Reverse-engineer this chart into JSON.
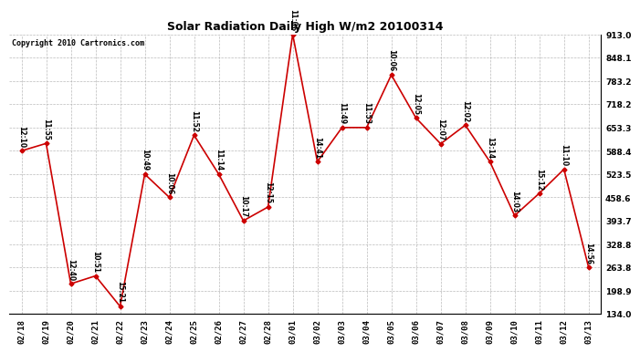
{
  "title": "Solar Radiation Daily High W/m2 20100314",
  "copyright": "Copyright 2010 Cartronics.com",
  "dates": [
    "02/18",
    "02/19",
    "02/20",
    "02/21",
    "02/22",
    "02/23",
    "02/24",
    "02/25",
    "02/26",
    "02/27",
    "02/28",
    "03/01",
    "03/02",
    "03/03",
    "03/04",
    "03/05",
    "03/06",
    "03/07",
    "03/08",
    "03/09",
    "03/10",
    "03/11",
    "03/12",
    "03/13"
  ],
  "values": [
    588.4,
    609.0,
    218.0,
    240.0,
    155.0,
    523.5,
    458.6,
    632.0,
    523.5,
    393.7,
    432.0,
    913.0,
    558.0,
    653.3,
    653.3,
    800.0,
    680.0,
    608.0,
    660.0,
    558.0,
    408.0,
    470.0,
    537.0,
    263.8
  ],
  "time_labels": [
    "12:10",
    "11:55",
    "12:40",
    "10:51",
    "15:21",
    "10:49",
    "10:06",
    "11:52",
    "11:14",
    "10:17",
    "12:15",
    "11:06",
    "14:41",
    "11:49",
    "11:53",
    "10:06",
    "12:05",
    "12:07",
    "12:02",
    "13:14",
    "14:03",
    "15:12",
    "11:10",
    "14:56"
  ],
  "ylim": [
    134.0,
    913.0
  ],
  "yticks": [
    134.0,
    198.9,
    263.8,
    328.8,
    393.7,
    458.6,
    523.5,
    588.4,
    653.3,
    718.2,
    783.2,
    848.1,
    913.0
  ],
  "ytick_labels": [
    "134.0",
    "198.9",
    "263.8",
    "328.8",
    "393.7",
    "458.6",
    "523.5",
    "588.4",
    "653.3",
    "718.2",
    "783.2",
    "848.1",
    "913.0"
  ],
  "line_color": "#cc0000",
  "marker_color": "#cc0000",
  "bg_color": "#ffffff",
  "grid_color": "#aaaaaa",
  "title_fontsize": 9,
  "copyright_fontsize": 6,
  "label_fontsize": 5.5,
  "tick_fontsize": 6.5
}
